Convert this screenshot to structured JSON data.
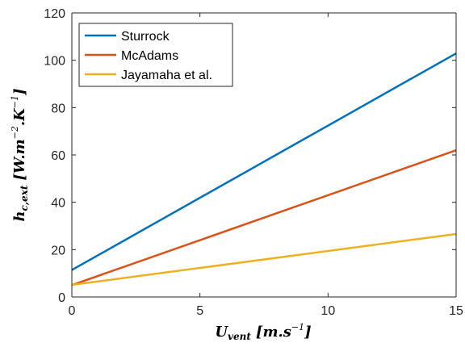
{
  "chart_data": {
    "type": "line",
    "x_axis": {
      "symbol": "U",
      "subscript": "vent",
      "unit_text": "[m.s",
      "unit_exp": "−1",
      "unit_close": "]",
      "range": [
        0,
        15
      ],
      "ticks": [
        0,
        5,
        10,
        15
      ]
    },
    "y_axis": {
      "symbol": "h",
      "subscript": "c,ext",
      "unit_text": "[W.m",
      "unit_exp": "−2",
      "unit_mid": ".K",
      "unit_exp2": "−1",
      "unit_close": "]",
      "range": [
        0,
        120
      ],
      "ticks": [
        0,
        20,
        40,
        60,
        80,
        100,
        120
      ]
    },
    "grid": false,
    "legend_position": "top-left",
    "series": [
      {
        "name": "Sturrock",
        "color": "#0072bd",
        "x": [
          0,
          15
        ],
        "y": [
          11.4,
          102.9
        ]
      },
      {
        "name": "McAdams",
        "color": "#d95319",
        "x": [
          0,
          15
        ],
        "y": [
          5.0,
          62.0
        ]
      },
      {
        "name": "Jayamaha et al.",
        "color": "#edb120",
        "x": [
          0,
          15
        ],
        "y": [
          5.1,
          26.6
        ]
      }
    ]
  }
}
